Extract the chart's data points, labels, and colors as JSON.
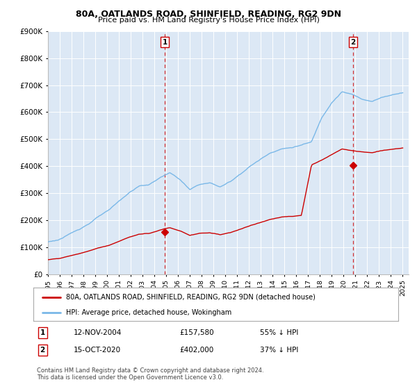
{
  "title1": "80A, OATLANDS ROAD, SHINFIELD, READING, RG2 9DN",
  "title2": "Price paid vs. HM Land Registry's House Price Index (HPI)",
  "legend_line1": "80A, OATLANDS ROAD, SHINFIELD, READING, RG2 9DN (detached house)",
  "legend_line2": "HPI: Average price, detached house, Wokingham",
  "annotation1_label": "1",
  "annotation1_date": "12-NOV-2004",
  "annotation1_price": "£157,580",
  "annotation1_pct": "55% ↓ HPI",
  "annotation2_label": "2",
  "annotation2_date": "15-OCT-2020",
  "annotation2_price": "£402,000",
  "annotation2_pct": "37% ↓ HPI",
  "footer": "Contains HM Land Registry data © Crown copyright and database right 2024.\nThis data is licensed under the Open Government Licence v3.0.",
  "hpi_color": "#7ab8e8",
  "price_color": "#cc0000",
  "vline_color": "#cc0000",
  "background_plot": "#dce8f5",
  "ylim": [
    0,
    900000
  ],
  "yticks": [
    0,
    100000,
    200000,
    300000,
    400000,
    500000,
    600000,
    700000,
    800000,
    900000
  ],
  "ytick_labels": [
    "£0",
    "£100K",
    "£200K",
    "£300K",
    "£400K",
    "£500K",
    "£600K",
    "£700K",
    "£800K",
    "£900K"
  ],
  "sale1_x": 2004.87,
  "sale1_y": 157580,
  "sale2_x": 2020.79,
  "sale2_y": 402000,
  "xlim_left": 1995.0,
  "xlim_right": 2025.5
}
